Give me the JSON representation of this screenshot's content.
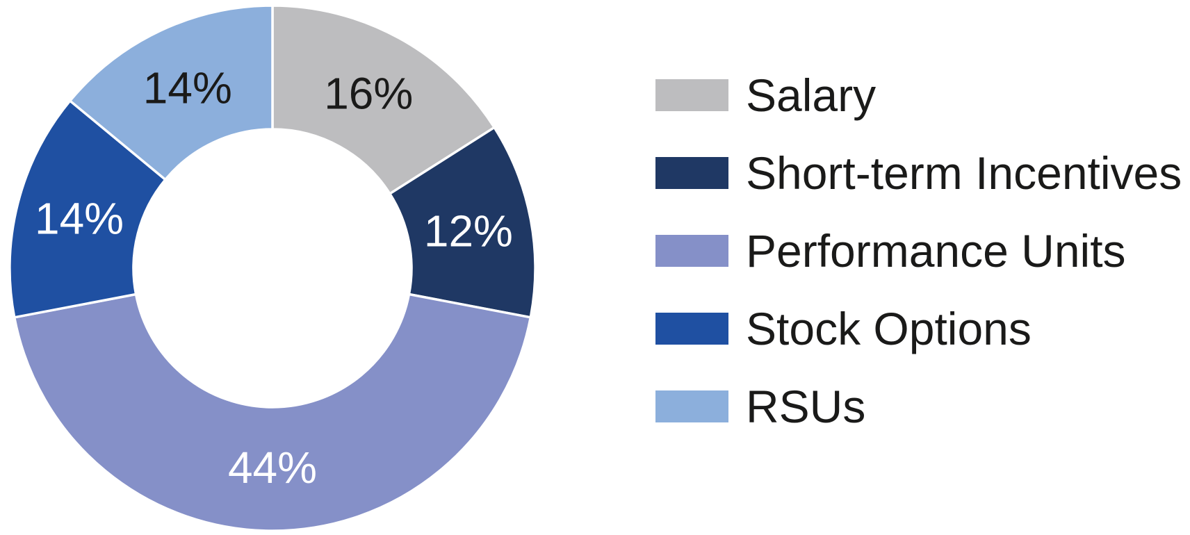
{
  "chart_data": {
    "type": "pie",
    "subtype": "donut",
    "title": "",
    "direction": "clockwise",
    "start_angle_deg": 0,
    "legend_position": "right",
    "data_label_format": "percent",
    "background_color": "#ffffff",
    "separator_color": "#ffffff",
    "legend_text_color": "#1a1a19",
    "segments": [
      {
        "label": "Salary",
        "value": 16,
        "data_label": "16%",
        "color": "#bdbdbf",
        "data_label_color": "#1a1a19"
      },
      {
        "label": "Short-term Incentives",
        "value": 12,
        "data_label": "12%",
        "color": "#1f3864",
        "data_label_color": "#ffffff"
      },
      {
        "label": "Performance Units",
        "value": 44,
        "data_label": "44%",
        "color": "#8590c8",
        "data_label_color": "#ffffff"
      },
      {
        "label": "Stock Options",
        "value": 14,
        "data_label": "14%",
        "color": "#1f50a2",
        "data_label_color": "#ffffff"
      },
      {
        "label": "RSUs",
        "value": 14,
        "data_label": "14%",
        "color": "#8cafdc",
        "data_label_color": "#1a1a19"
      }
    ]
  }
}
